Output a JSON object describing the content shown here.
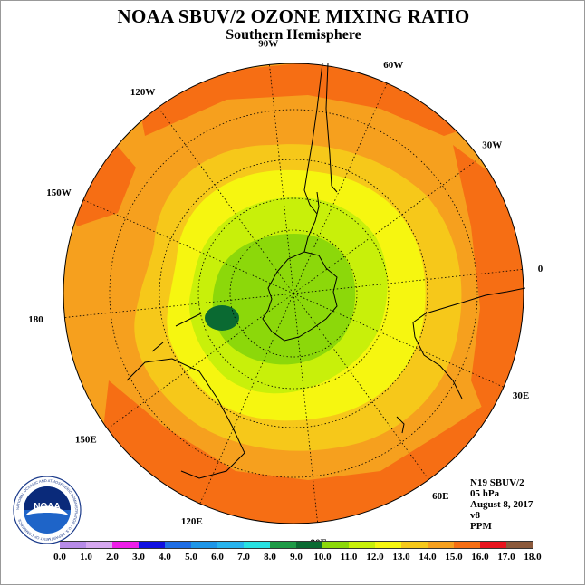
{
  "title": "NOAA SBUV/2 OZONE MIXING RATIO",
  "subtitle": "Southern Hemisphere",
  "longitude_labels": [
    "90W",
    "60W",
    "30W",
    "0",
    "30E",
    "60E",
    "90E",
    "120E",
    "150E",
    "180",
    "150W",
    "120W"
  ],
  "info": {
    "satellite": "N19 SBUV/2",
    "level": "05 hPa",
    "date": "August 8, 2017",
    "version": "v8",
    "units": "PPM"
  },
  "logo": {
    "text": "NOAA",
    "ring_text": "NATIONAL OCEANIC AND ATMOSPHERIC ADMINISTRATION • U.S. DEPARTMENT OF COMMERCE"
  },
  "colorbar": {
    "ticks": [
      "0.0",
      "1.0",
      "2.0",
      "3.0",
      "4.0",
      "5.0",
      "6.0",
      "7.0",
      "8.0",
      "9.0",
      "10.0",
      "11.0",
      "12.0",
      "13.0",
      "14.0",
      "15.0",
      "16.0",
      "17.0",
      "18.0"
    ],
    "colors": [
      "#b78be8",
      "#d6a8f0",
      "#ee1ee8",
      "#1010e0",
      "#1e6ee6",
      "#1e96e8",
      "#28b4ee",
      "#28e0e0",
      "#1e9a46",
      "#0a6a32",
      "#8cd80a",
      "#c8f00a",
      "#f6f610",
      "#f6c81a",
      "#f6a01e",
      "#f66e14",
      "#e8141e",
      "#8c5a3c"
    ]
  },
  "map_colors": {
    "c15_16": "#f66e14",
    "c14_15": "#f6a01e",
    "c13_14": "#f6c81a",
    "c12_13": "#f6f610",
    "c11_12": "#c8f00a",
    "c10_11": "#8cd80a",
    "c9_10": "#0a6a32"
  }
}
